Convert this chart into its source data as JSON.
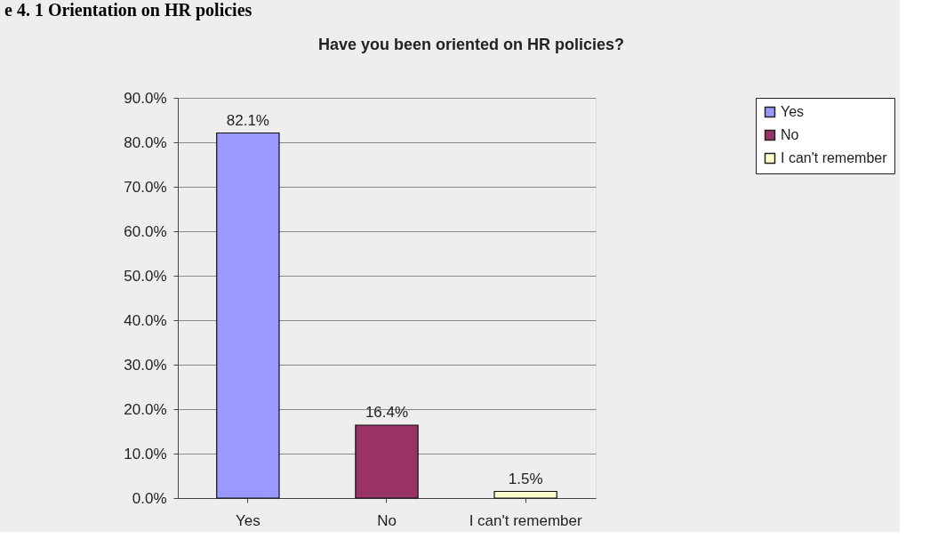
{
  "chart_data": {
    "type": "bar",
    "title": "Have you been oriented on HR policies?",
    "annotations": [
      "e 4. 1 Orientation on HR policies"
    ],
    "categories": [
      "Yes",
      "No",
      "I can't remember"
    ],
    "series": [
      {
        "name": "Yes",
        "color": "#9999ff",
        "values": [
          82.1,
          null,
          null
        ],
        "value_labels": [
          "82.1%",
          null,
          null
        ]
      },
      {
        "name": "No",
        "color": "#993366",
        "values": [
          null,
          16.4,
          null
        ],
        "value_labels": [
          null,
          "16.4%",
          null
        ]
      },
      {
        "name": "I can't remember",
        "color": "#ffffcc",
        "values": [
          null,
          null,
          1.5
        ],
        "value_labels": [
          null,
          null,
          "1.5%"
        ]
      }
    ],
    "ylim": [
      0,
      90
    ],
    "yticks": [
      {
        "value": 0,
        "label": "0.0%"
      },
      {
        "value": 10,
        "label": "10.0%"
      },
      {
        "value": 20,
        "label": "20.0%"
      },
      {
        "value": 30,
        "label": "30.0%"
      },
      {
        "value": 40,
        "label": "40.0%"
      },
      {
        "value": 50,
        "label": "50.0%"
      },
      {
        "value": 60,
        "label": "60.0%"
      },
      {
        "value": 70,
        "label": "70.0%"
      },
      {
        "value": 80,
        "label": "80.0%"
      },
      {
        "value": 90,
        "label": "90.0%"
      }
    ],
    "grid": "y",
    "legend": "right"
  }
}
